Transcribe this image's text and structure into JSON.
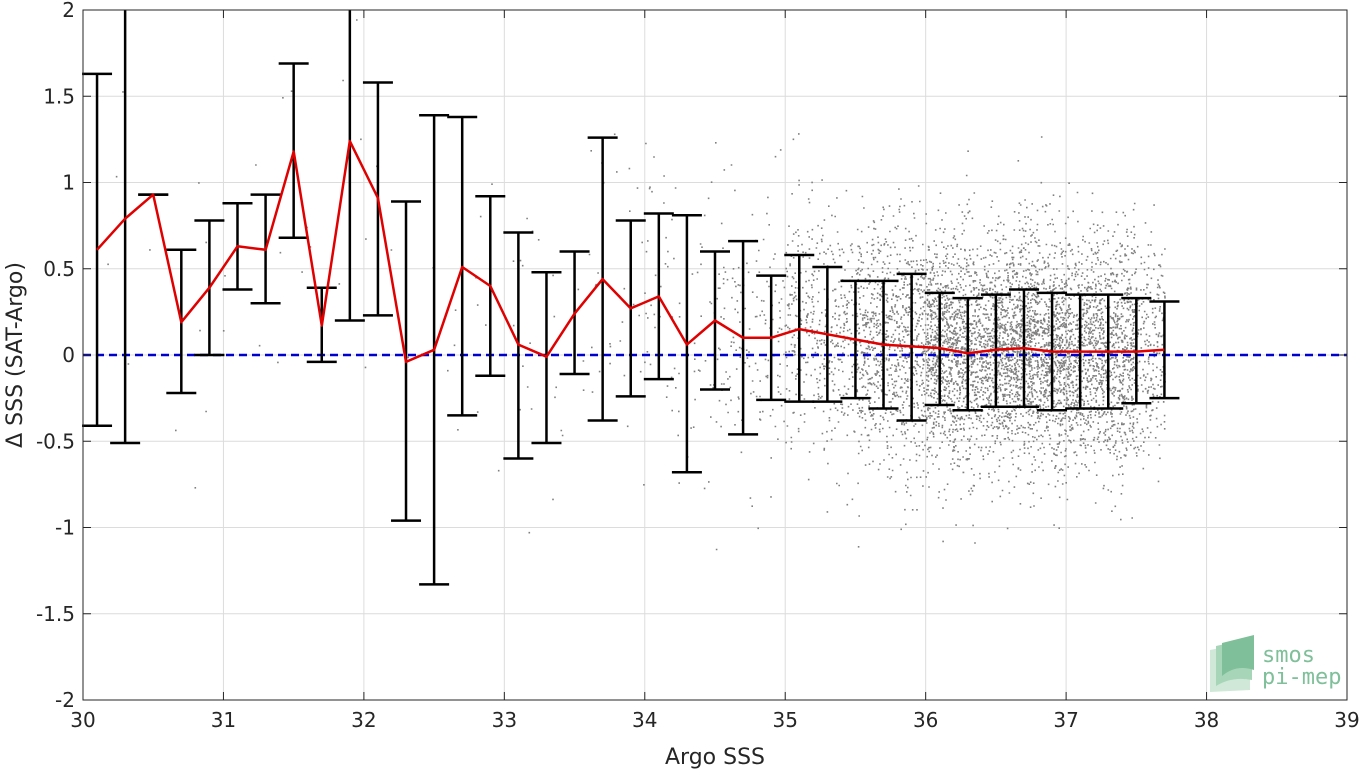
{
  "chart_data": {
    "type": "scatter",
    "title": "",
    "xlabel": "Argo SSS",
    "ylabel": "Δ SSS (SAT-Argo)",
    "xlim": [
      30,
      39
    ],
    "ylim": [
      -2,
      2
    ],
    "xticks": [
      "30",
      "31",
      "32",
      "33",
      "34",
      "35",
      "36",
      "37",
      "38",
      "39"
    ],
    "yticks": [
      "-2",
      "-1.5",
      "-1",
      "-0.5",
      "0",
      "0.5",
      "1",
      "1.5",
      "2"
    ],
    "grid": true,
    "reference_line": {
      "y": 0,
      "style": "dashed",
      "color": "#0000cc"
    },
    "scatter_color": "#808080",
    "mean_line_color": "#e00000",
    "errorbar_color": "#000000",
    "errorbars": [
      {
        "x": 30.1,
        "mean": 0.61,
        "low": -0.41,
        "high": 1.63
      },
      {
        "x": 30.3,
        "mean": 0.79,
        "low": -0.51,
        "high": 2.0
      },
      {
        "x": 30.5,
        "mean": 0.93,
        "low": 0.93,
        "high": 0.93
      },
      {
        "x": 30.7,
        "mean": 0.19,
        "low": -0.22,
        "high": 0.61
      },
      {
        "x": 30.9,
        "mean": 0.39,
        "low": -0.0,
        "high": 0.78
      },
      {
        "x": 31.1,
        "mean": 0.63,
        "low": 0.38,
        "high": 0.88
      },
      {
        "x": 31.3,
        "mean": 0.61,
        "low": 0.3,
        "high": 0.93
      },
      {
        "x": 31.5,
        "mean": 1.18,
        "low": 0.68,
        "high": 1.69
      },
      {
        "x": 31.7,
        "mean": 0.17,
        "low": -0.04,
        "high": 0.39
      },
      {
        "x": 31.9,
        "mean": 1.24,
        "low": 0.2,
        "high": 2.0
      },
      {
        "x": 32.1,
        "mean": 0.91,
        "low": 0.23,
        "high": 1.58
      },
      {
        "x": 32.3,
        "mean": -0.04,
        "low": -0.96,
        "high": 0.89
      },
      {
        "x": 32.5,
        "mean": 0.03,
        "low": -1.33,
        "high": 1.39
      },
      {
        "x": 32.7,
        "mean": 0.51,
        "low": -0.35,
        "high": 1.38
      },
      {
        "x": 32.9,
        "mean": 0.4,
        "low": -0.12,
        "high": 0.92
      },
      {
        "x": 33.1,
        "mean": 0.06,
        "low": -0.6,
        "high": 0.71
      },
      {
        "x": 33.3,
        "mean": -0.01,
        "low": -0.51,
        "high": 0.48
      },
      {
        "x": 33.5,
        "mean": 0.24,
        "low": -0.11,
        "high": 0.6
      },
      {
        "x": 33.7,
        "mean": 0.44,
        "low": -0.38,
        "high": 1.26
      },
      {
        "x": 33.9,
        "mean": 0.27,
        "low": -0.24,
        "high": 0.78
      },
      {
        "x": 34.1,
        "mean": 0.34,
        "low": -0.14,
        "high": 0.82
      },
      {
        "x": 34.3,
        "mean": 0.06,
        "low": -0.68,
        "high": 0.81
      },
      {
        "x": 34.5,
        "mean": 0.2,
        "low": -0.2,
        "high": 0.6
      },
      {
        "x": 34.7,
        "mean": 0.1,
        "low": -0.46,
        "high": 0.66
      },
      {
        "x": 34.9,
        "mean": 0.1,
        "low": -0.26,
        "high": 0.46
      },
      {
        "x": 35.1,
        "mean": 0.15,
        "low": -0.27,
        "high": 0.58
      },
      {
        "x": 35.3,
        "mean": 0.12,
        "low": -0.27,
        "high": 0.51
      },
      {
        "x": 35.5,
        "mean": 0.09,
        "low": -0.25,
        "high": 0.43
      },
      {
        "x": 35.7,
        "mean": 0.06,
        "low": -0.31,
        "high": 0.43
      },
      {
        "x": 35.9,
        "mean": 0.05,
        "low": -0.38,
        "high": 0.47
      },
      {
        "x": 36.1,
        "mean": 0.04,
        "low": -0.29,
        "high": 0.36
      },
      {
        "x": 36.3,
        "mean": 0.01,
        "low": -0.32,
        "high": 0.33
      },
      {
        "x": 36.5,
        "mean": 0.03,
        "low": -0.3,
        "high": 0.35
      },
      {
        "x": 36.7,
        "mean": 0.04,
        "low": -0.3,
        "high": 0.38
      },
      {
        "x": 36.9,
        "mean": 0.02,
        "low": -0.32,
        "high": 0.36
      },
      {
        "x": 37.1,
        "mean": 0.02,
        "low": -0.31,
        "high": 0.35
      },
      {
        "x": 37.3,
        "mean": 0.02,
        "low": -0.31,
        "high": 0.35
      },
      {
        "x": 37.5,
        "mean": 0.02,
        "low": -0.28,
        "high": 0.33
      },
      {
        "x": 37.7,
        "mean": 0.03,
        "low": -0.25,
        "high": 0.31
      }
    ],
    "scatter_density": [
      {
        "x0": 30.0,
        "x1": 31.0,
        "n": 12,
        "sd": 0.6
      },
      {
        "x0": 31.0,
        "x1": 32.0,
        "n": 14,
        "sd": 0.55
      },
      {
        "x0": 32.0,
        "x1": 33.0,
        "n": 18,
        "sd": 0.6
      },
      {
        "x0": 33.0,
        "x1": 33.5,
        "n": 20,
        "sd": 0.45
      },
      {
        "x0": 33.5,
        "x1": 34.0,
        "n": 35,
        "sd": 0.45
      },
      {
        "x0": 34.0,
        "x1": 34.5,
        "n": 70,
        "sd": 0.42
      },
      {
        "x0": 34.5,
        "x1": 35.0,
        "n": 160,
        "sd": 0.38
      },
      {
        "x0": 35.0,
        "x1": 35.5,
        "n": 420,
        "sd": 0.36
      },
      {
        "x0": 35.5,
        "x1": 36.0,
        "n": 900,
        "sd": 0.36
      },
      {
        "x0": 36.0,
        "x1": 36.5,
        "n": 1500,
        "sd": 0.33
      },
      {
        "x0": 36.5,
        "x1": 37.0,
        "n": 1700,
        "sd": 0.33
      },
      {
        "x0": 37.0,
        "x1": 37.5,
        "n": 1300,
        "sd": 0.33
      },
      {
        "x0": 37.5,
        "x1": 37.7,
        "n": 220,
        "sd": 0.3
      }
    ],
    "logo": {
      "line1": "smos",
      "line2": "pi-mep"
    }
  }
}
